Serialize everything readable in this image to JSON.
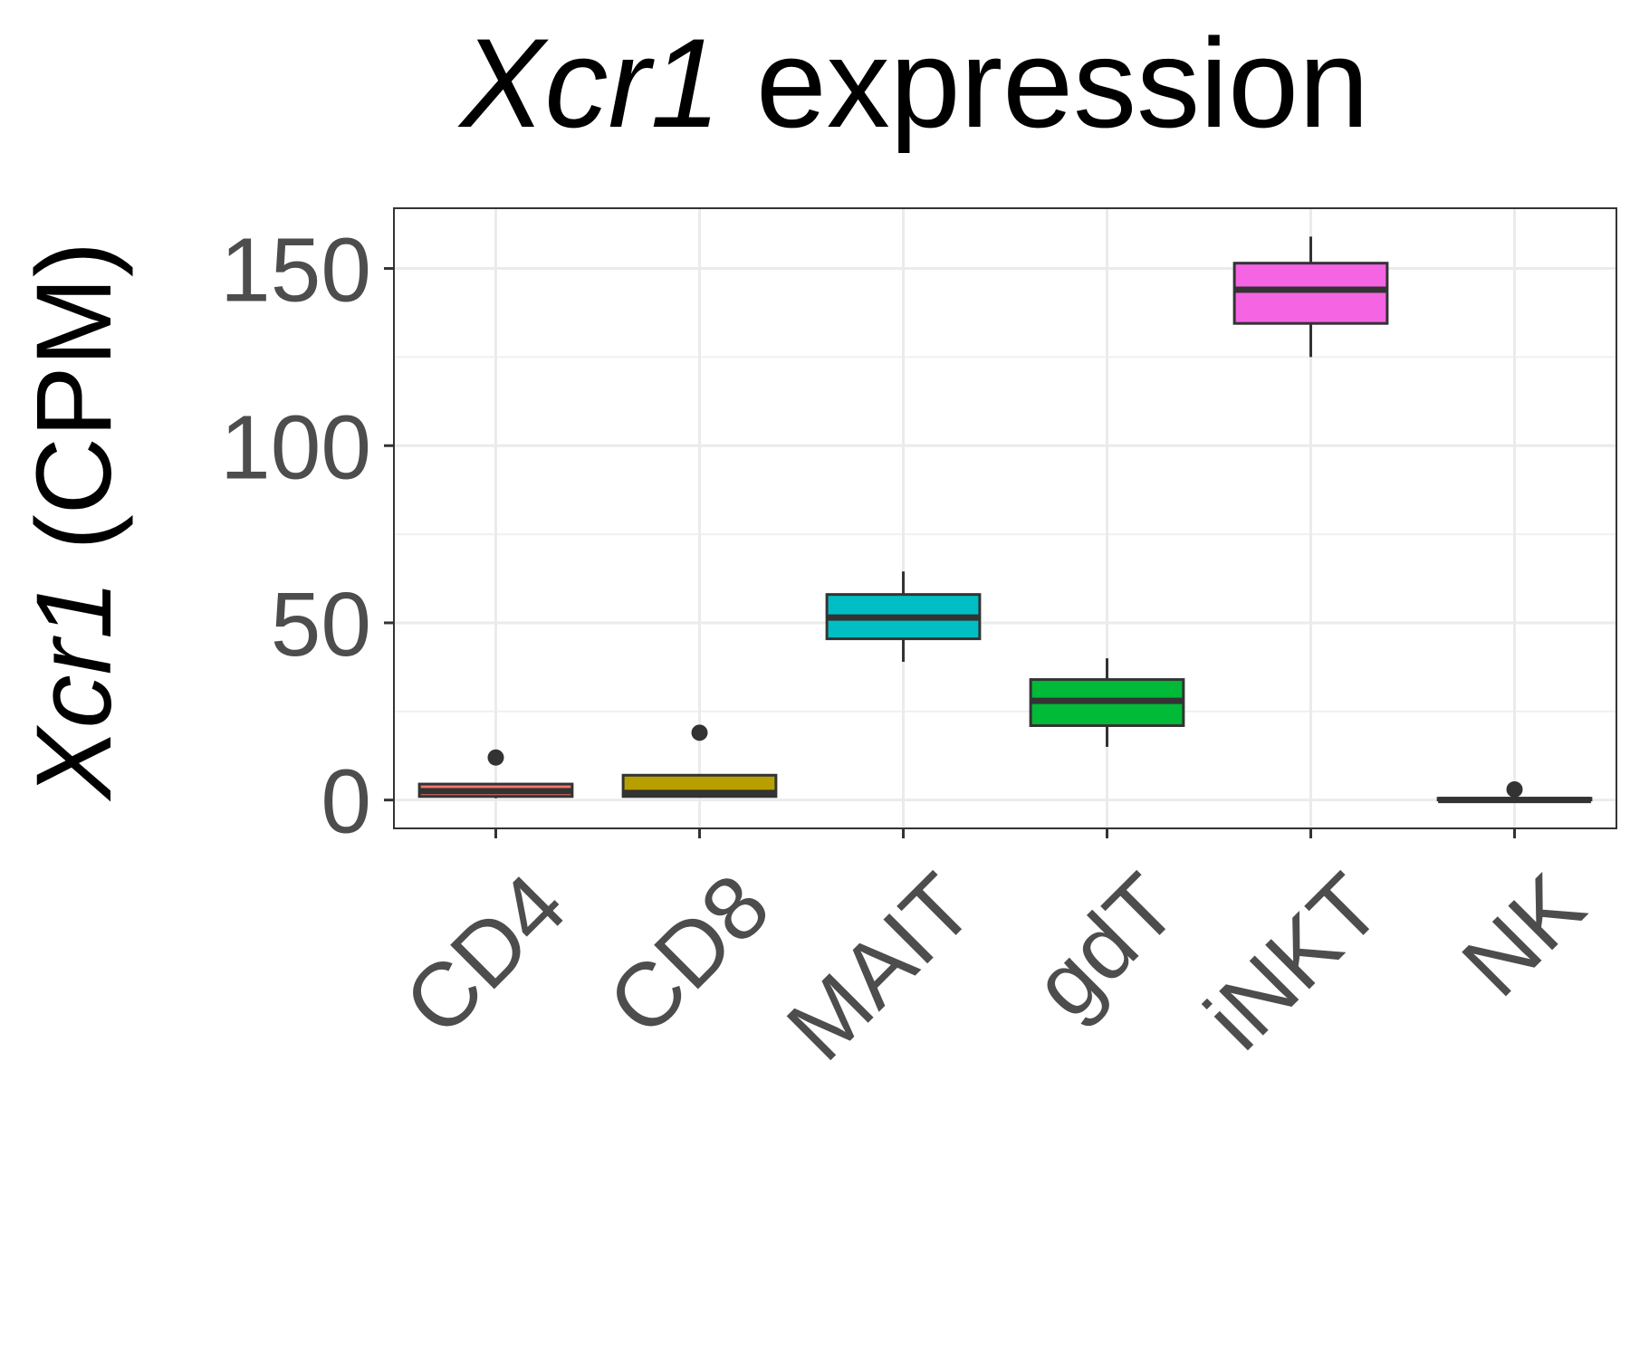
{
  "chart_data": {
    "type": "box",
    "title": {
      "gene": "Xcr1",
      "rest": " expression"
    },
    "ylabel": {
      "gene": "Xcr1",
      "rest": " (CPM)"
    },
    "xlabel": "",
    "ylim": [
      -8,
      167
    ],
    "yticks": [
      0,
      50,
      100,
      150
    ],
    "grid": true,
    "categories": [
      "CD4",
      "CD8",
      "MAIT",
      "gdT",
      "iNKT",
      "NK"
    ],
    "series": [
      {
        "category": "CD4",
        "color": "#F8766D",
        "whisker_low": 0.5,
        "q1": 1,
        "median": 2.5,
        "q3": 4.5,
        "whisker_high": 4.5,
        "outliers": [
          12
        ]
      },
      {
        "category": "CD8",
        "color": "#B79F00",
        "whisker_low": 1,
        "q1": 1,
        "median": 2,
        "q3": 7,
        "whisker_high": 7,
        "outliers": [
          19
        ]
      },
      {
        "category": "MAIT",
        "color": "#00BFC4",
        "whisker_low": 39,
        "q1": 45.5,
        "median": 51.5,
        "q3": 58,
        "whisker_high": 64.5,
        "outliers": []
      },
      {
        "category": "gdT",
        "color": "#00BA38",
        "whisker_low": 15,
        "q1": 21,
        "median": 28,
        "q3": 34,
        "whisker_high": 40,
        "outliers": []
      },
      {
        "category": "iNKT",
        "color": "#F564E3",
        "whisker_low": 125,
        "q1": 134.5,
        "median": 144,
        "q3": 151.5,
        "whisker_high": 159,
        "outliers": []
      },
      {
        "category": "NK",
        "color": "#619CFF",
        "whisker_low": 0,
        "q1": 0,
        "median": 0,
        "q3": 0.5,
        "whisker_high": 0.5,
        "outliers": [
          3
        ]
      }
    ]
  }
}
